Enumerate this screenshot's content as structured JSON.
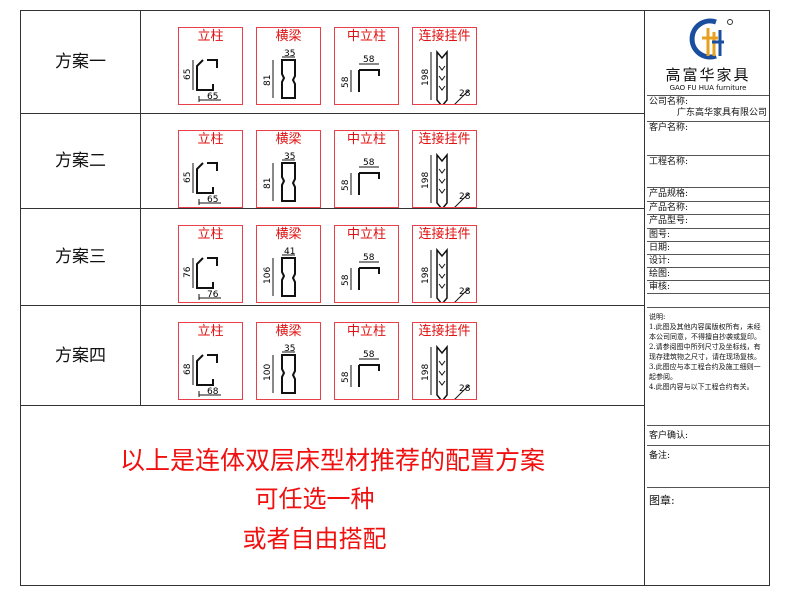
{
  "schemes": [
    {
      "label": "方案一",
      "parts": [
        {
          "title": "立柱",
          "dims": [
            "65",
            "65"
          ]
        },
        {
          "title": "横梁",
          "dims": [
            "35",
            "81"
          ]
        },
        {
          "title": "中立柱",
          "dims": [
            "58",
            "58"
          ]
        },
        {
          "title": "连接挂件",
          "dims": [
            "198",
            "28"
          ]
        }
      ]
    },
    {
      "label": "方案二",
      "parts": [
        {
          "title": "立柱",
          "dims": [
            "65",
            "65"
          ]
        },
        {
          "title": "横梁",
          "dims": [
            "35",
            "81"
          ]
        },
        {
          "title": "中立柱",
          "dims": [
            "58",
            "58"
          ]
        },
        {
          "title": "连接挂件",
          "dims": [
            "198",
            "28"
          ]
        }
      ]
    },
    {
      "label": "方案三",
      "parts": [
        {
          "title": "立柱",
          "dims": [
            "76",
            "76"
          ]
        },
        {
          "title": "横梁",
          "dims": [
            "41",
            "106"
          ]
        },
        {
          "title": "中立柱",
          "dims": [
            "58",
            "58"
          ]
        },
        {
          "title": "连接挂件",
          "dims": [
            "198",
            "28"
          ]
        }
      ]
    },
    {
      "label": "方案四",
      "parts": [
        {
          "title": "立柱",
          "dims": [
            "68",
            "68"
          ]
        },
        {
          "title": "横梁",
          "dims": [
            "35",
            "100"
          ]
        },
        {
          "title": "中立柱",
          "dims": [
            "58",
            "58"
          ]
        },
        {
          "title": "连接挂件",
          "dims": [
            "198",
            "28"
          ]
        }
      ]
    }
  ],
  "bottom": {
    "line1": "以上是连体双层床型材推荐的配置方案",
    "line2": "可任选一种",
    "line3": "或者自由搭配"
  },
  "logo": {
    "cn": "高富华家具",
    "en": "GAO FU HUA furniture",
    "colors": {
      "blue": "#1a4fa0",
      "orange": "#e8a020"
    }
  },
  "panel": {
    "company_label": "公司名称:",
    "company_value": "广东高华家具有限公司",
    "customer": "客户名称:",
    "project": "工程名称:",
    "spec": "产品规格:",
    "name": "产品名称:",
    "model": "产品型号:",
    "drawing_no": "图号:",
    "date": "日期:",
    "design": "设计:",
    "draw": "绘图:",
    "review": "审核:",
    "notes_title": "说明:",
    "notes": [
      "1.此图及其他内容属版权所有，未经本公司同意，不得擅自抄袭或复印。",
      "2.请参阅图中所列尺寸及坐标线，有现存建筑物之尺寸，请在现场复核。",
      "3.此图应与本工程合约及施工细则一起参阅。",
      "4.此图内容与以下工程合约有关。"
    ],
    "confirm": "客户确认:",
    "remark": "备注:",
    "seal": "图章:"
  }
}
